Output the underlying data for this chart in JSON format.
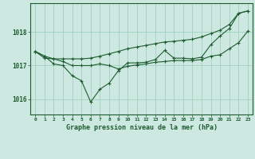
{
  "title": "Graphe pression niveau de la mer (hPa)",
  "background_color": "#cce8e0",
  "grid_color": "#99ccbb",
  "line_color": "#1e5c30",
  "xlim": [
    -0.5,
    23.5
  ],
  "ylim": [
    1015.55,
    1018.85
  ],
  "yticks": [
    1016,
    1017,
    1018
  ],
  "xticks": [
    0,
    1,
    2,
    3,
    4,
    5,
    6,
    7,
    8,
    9,
    10,
    11,
    12,
    13,
    14,
    15,
    16,
    17,
    18,
    19,
    20,
    21,
    22,
    23
  ],
  "series": {
    "main": [
      1017.42,
      1017.28,
      1017.05,
      1017.0,
      1016.7,
      1016.55,
      1015.92,
      1016.3,
      1016.48,
      1016.85,
      1017.08,
      1017.08,
      1017.1,
      1017.18,
      1017.45,
      1017.22,
      1017.22,
      1017.2,
      1017.25,
      1017.62,
      1017.88,
      1018.1,
      1018.55,
      1018.62
    ],
    "upper": [
      1017.42,
      1017.28,
      1017.2,
      1017.2,
      1017.2,
      1017.2,
      1017.22,
      1017.28,
      1017.35,
      1017.42,
      1017.5,
      1017.55,
      1017.6,
      1017.65,
      1017.7,
      1017.72,
      1017.75,
      1017.78,
      1017.85,
      1017.95,
      1018.05,
      1018.22,
      1018.55,
      1018.62
    ],
    "lower": [
      1017.42,
      1017.22,
      1017.2,
      1017.12,
      1017.0,
      1017.0,
      1017.0,
      1017.05,
      1017.0,
      1016.9,
      1016.98,
      1017.02,
      1017.05,
      1017.1,
      1017.12,
      1017.15,
      1017.15,
      1017.15,
      1017.18,
      1017.28,
      1017.32,
      1017.5,
      1017.68,
      1018.02
    ]
  }
}
